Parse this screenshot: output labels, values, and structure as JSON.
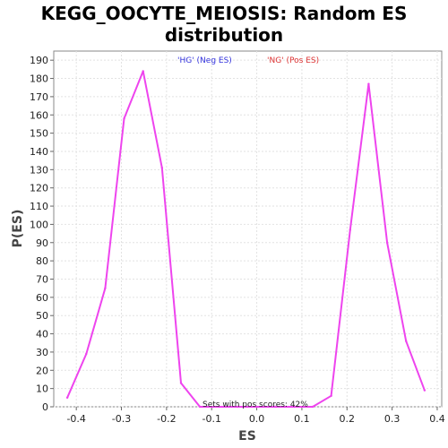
{
  "chart_data": {
    "type": "line",
    "title_line1": "KEGG_OOCYTE_MEIOSIS: Random ES",
    "title_line2": "distribution",
    "xlabel": "ES",
    "ylabel": "P(ES)",
    "xlim": [
      -0.45,
      0.41
    ],
    "ylim": [
      0,
      195
    ],
    "x_ticks": [
      -0.4,
      -0.3,
      -0.2,
      -0.1,
      0.0,
      0.1,
      0.2,
      0.3,
      0.4
    ],
    "y_ticks": [
      0,
      10,
      20,
      30,
      40,
      50,
      60,
      70,
      80,
      90,
      100,
      110,
      120,
      130,
      140,
      150,
      160,
      170,
      180,
      190
    ],
    "grid": true,
    "series": [
      {
        "color": "#ee44ee",
        "x": [
          -0.42,
          -0.378,
          -0.336,
          -0.294,
          -0.252,
          -0.21,
          -0.168,
          -0.126,
          -0.084,
          -0.042,
          0.0,
          0.041,
          0.083,
          0.124,
          0.165,
          0.207,
          0.248,
          0.289,
          0.331,
          0.372
        ],
        "y": [
          5,
          29,
          65,
          158,
          184,
          131,
          13,
          0,
          0,
          0,
          0,
          0,
          0,
          0,
          6,
          97,
          177,
          90,
          36,
          9
        ]
      }
    ],
    "annotations": [
      {
        "text": "'HG' (Neg ES)",
        "color": "#3333dd"
      },
      {
        "text": "'NG' (Pos ES)",
        "color": "#dd3333"
      },
      {
        "text": "Sets with pos scores: 42%",
        "color": "#222222"
      }
    ]
  }
}
